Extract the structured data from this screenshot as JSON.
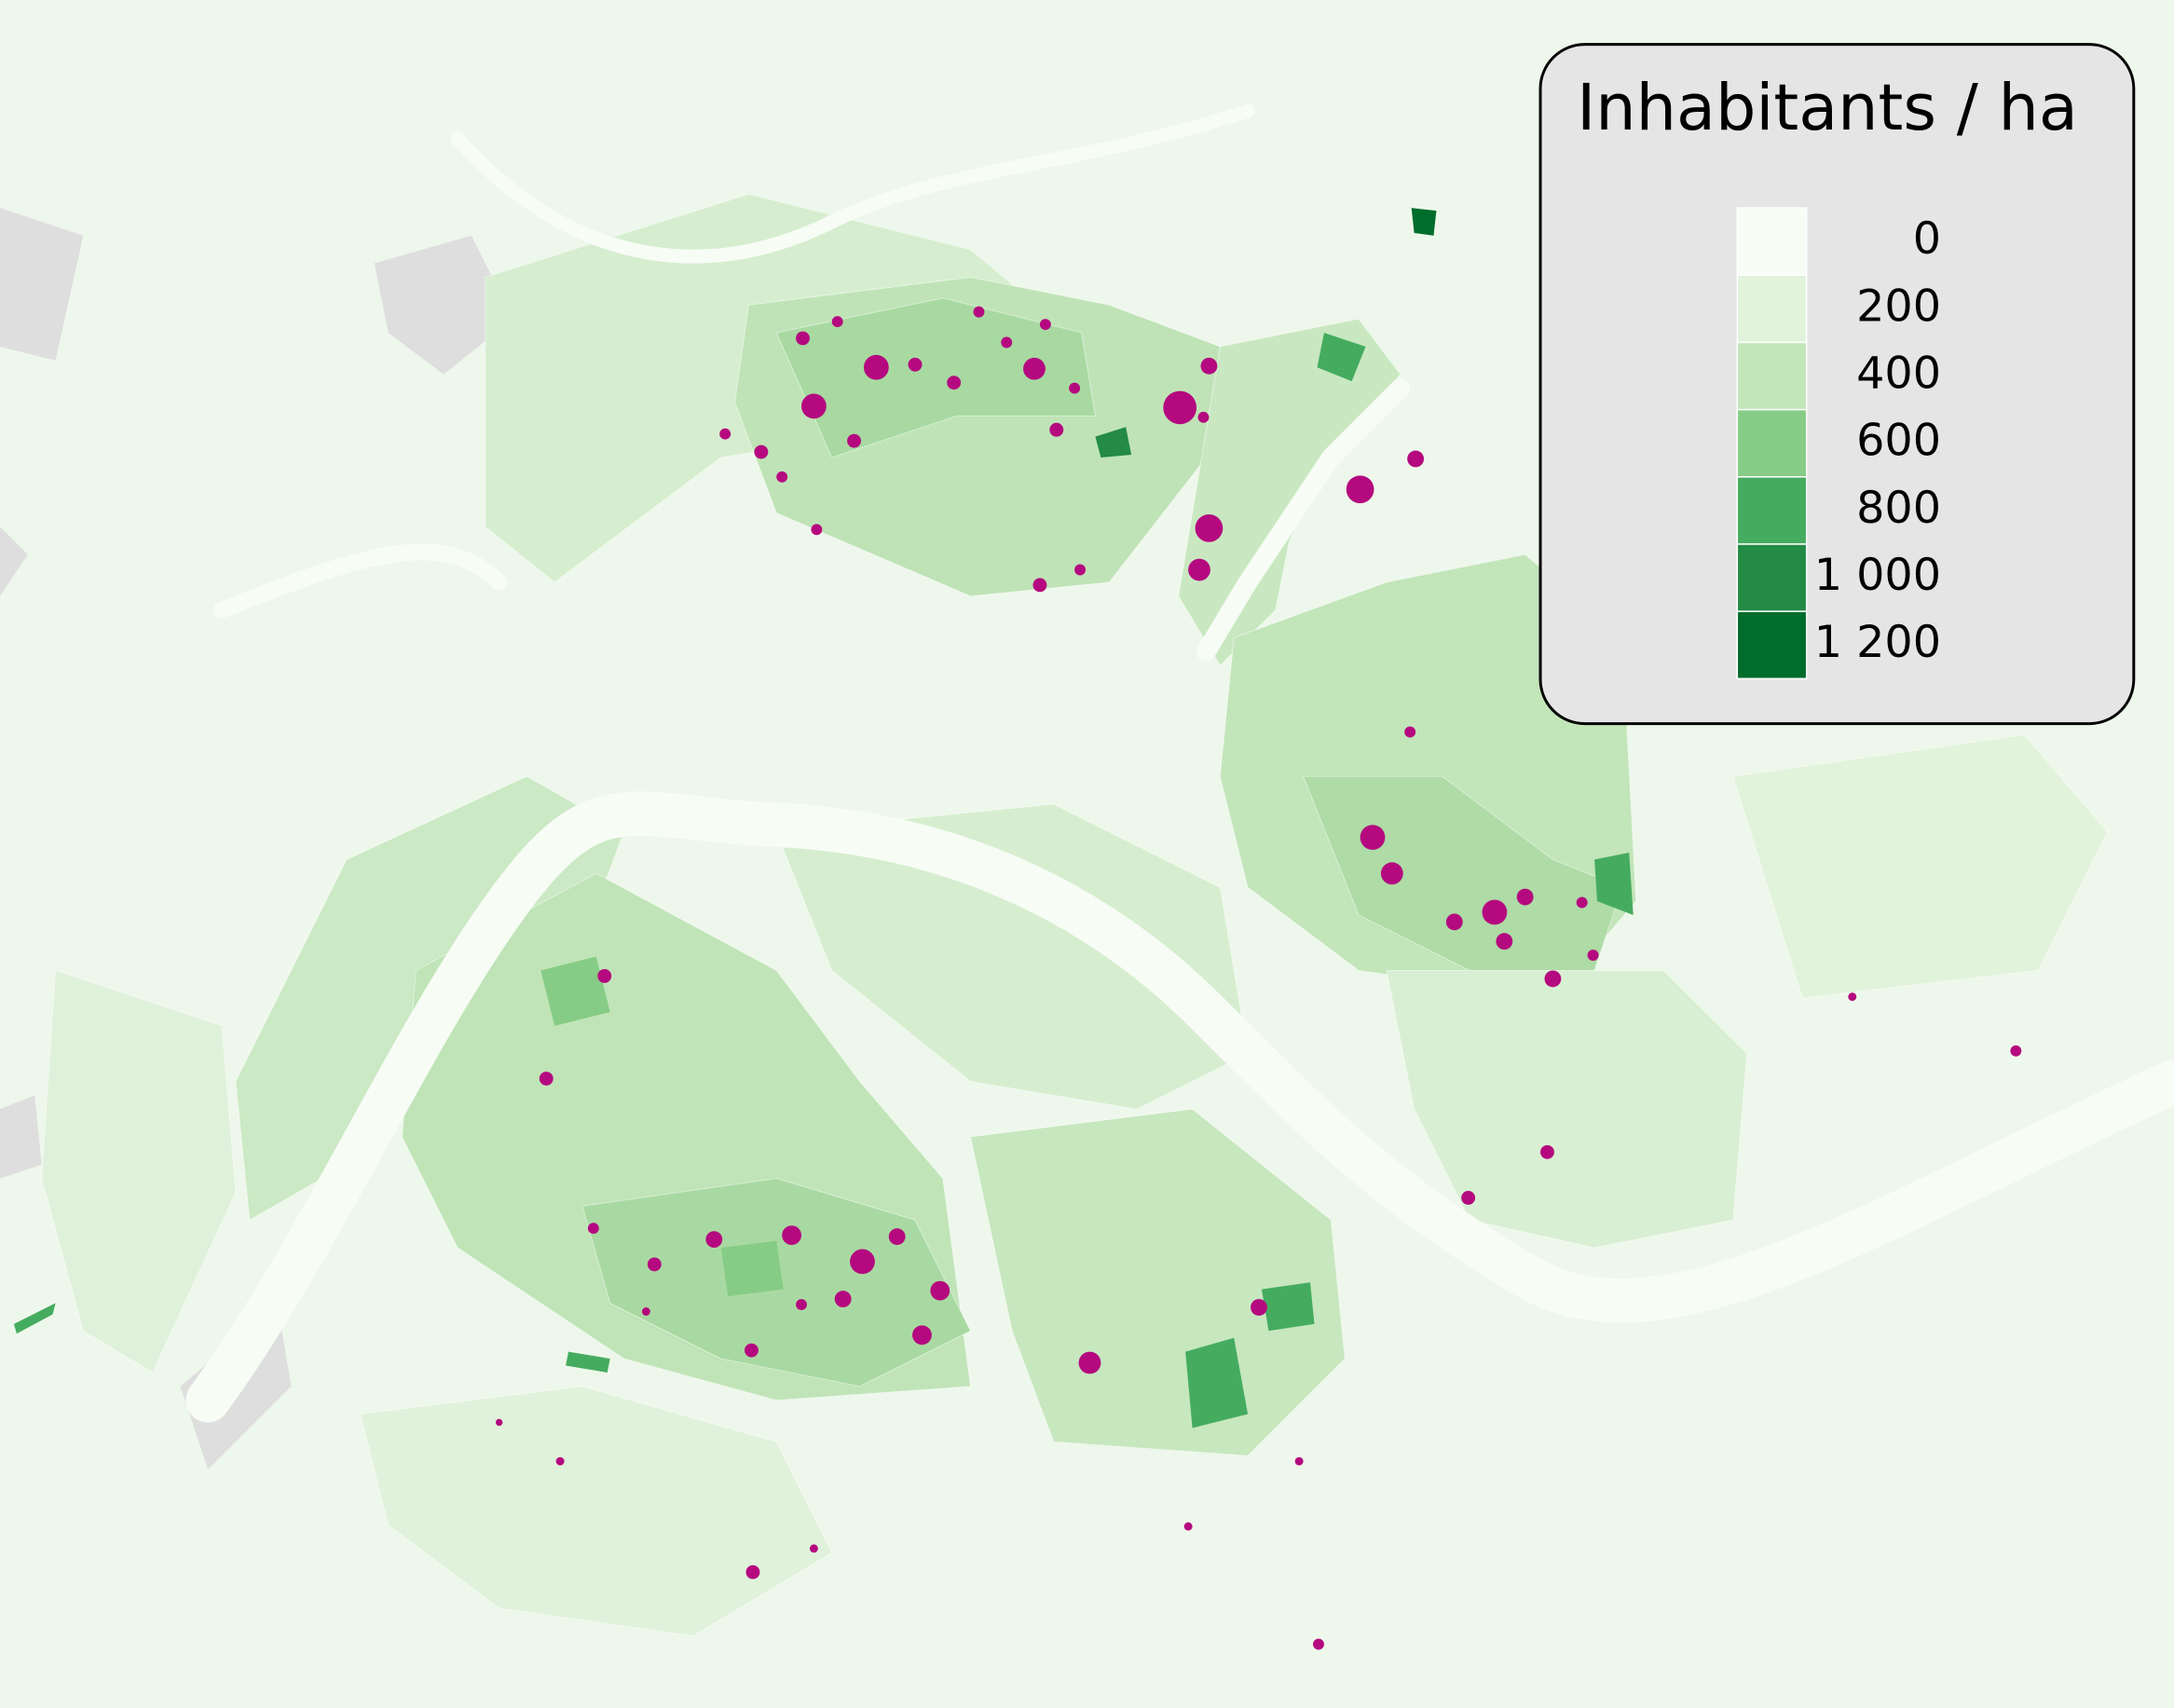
{
  "legend": {
    "title": "Inhabitants / ha",
    "classes": [
      {
        "label": "0",
        "color": "#f7fcf5"
      },
      {
        "label": "200",
        "color": "#e2f3dc"
      },
      {
        "label": "400",
        "color": "#c2e5ba"
      },
      {
        "label": "600",
        "color": "#86cc86"
      },
      {
        "label": "800",
        "color": "#45ac5f"
      },
      {
        "label": "1 000",
        "color": "#238b45"
      },
      {
        "label": "1 200",
        "color": "#006d2c"
      }
    ]
  }
}
